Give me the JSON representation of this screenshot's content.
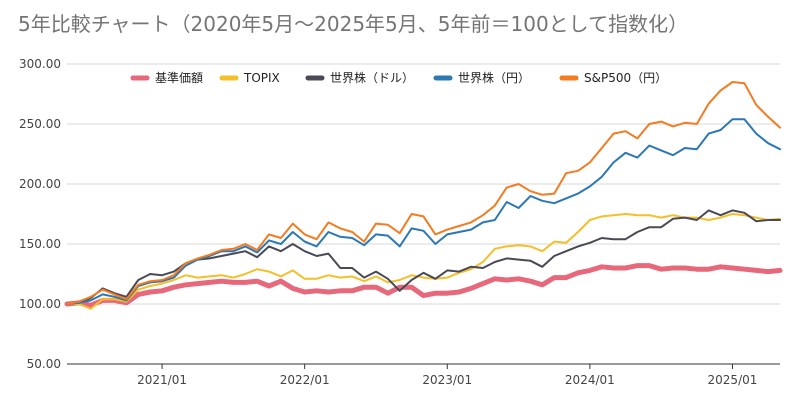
{
  "chart_data": {
    "type": "line",
    "title": "5年比較チャート（2020年5月〜2025年5月、5年前＝100として指数化）",
    "xlabel": "",
    "ylabel": "",
    "ylim": [
      50,
      300
    ],
    "y_ticks": [
      "50.00",
      "100.00",
      "150.00",
      "200.00",
      "250.00",
      "300.00"
    ],
    "x_ticks": [
      "2021/01",
      "2022/01",
      "2023/01",
      "2024/01",
      "2025/01"
    ],
    "x_start": "2020/05",
    "x_end": "2025/05",
    "grid": true,
    "legend_position": "top",
    "x": [
      "2020/05",
      "2020/06",
      "2020/07",
      "2020/08",
      "2020/09",
      "2020/10",
      "2020/11",
      "2020/12",
      "2021/01",
      "2021/02",
      "2021/03",
      "2021/04",
      "2021/05",
      "2021/06",
      "2021/07",
      "2021/08",
      "2021/09",
      "2021/10",
      "2021/11",
      "2021/12",
      "2022/01",
      "2022/02",
      "2022/03",
      "2022/04",
      "2022/05",
      "2022/06",
      "2022/07",
      "2022/08",
      "2022/09",
      "2022/10",
      "2022/11",
      "2022/12",
      "2023/01",
      "2023/02",
      "2023/03",
      "2023/04",
      "2023/05",
      "2023/06",
      "2023/07",
      "2023/08",
      "2023/09",
      "2023/10",
      "2023/11",
      "2023/12",
      "2024/01",
      "2024/02",
      "2024/03",
      "2024/04",
      "2024/05",
      "2024/06",
      "2024/07",
      "2024/08",
      "2024/09",
      "2024/10",
      "2024/11",
      "2024/12",
      "2025/01",
      "2025/02",
      "2025/03",
      "2025/04",
      "2025/05"
    ],
    "series": [
      {
        "name": "基準価額",
        "color": "#e8687b",
        "width": 5,
        "values": [
          100,
          101,
          99,
          103,
          103,
          101,
          108,
          110,
          111,
          114,
          116,
          117,
          118,
          119,
          118,
          118,
          119,
          115,
          119,
          113,
          110,
          111,
          110,
          111,
          111,
          114,
          114,
          109,
          114,
          114,
          107,
          109,
          109,
          110,
          113,
          117,
          121,
          120,
          121,
          119,
          116,
          122,
          122,
          126,
          128,
          131,
          130,
          130,
          132,
          132,
          129,
          130,
          130,
          129,
          129,
          131,
          130,
          129,
          128,
          127,
          128
        ]
      },
      {
        "name": "TOPIX",
        "color": "#f4c029",
        "width": 2,
        "values": [
          100,
          100,
          96,
          104,
          104,
          102,
          112,
          115,
          117,
          120,
          124,
          122,
          123,
          124,
          122,
          125,
          129,
          127,
          123,
          128,
          121,
          121,
          124,
          122,
          123,
          119,
          123,
          118,
          120,
          124,
          122,
          121,
          122,
          126,
          129,
          135,
          146,
          148,
          149,
          148,
          144,
          152,
          151,
          160,
          170,
          173,
          174,
          175,
          174,
          174,
          172,
          174,
          172,
          172,
          170,
          172,
          175,
          174,
          172,
          170,
          171
        ]
      },
      {
        "name": "世界株（ドル）",
        "color": "#4a4a56",
        "width": 2,
        "values": [
          100,
          101,
          105,
          113,
          109,
          106,
          120,
          125,
          124,
          127,
          134,
          137,
          138,
          140,
          142,
          144,
          139,
          148,
          144,
          150,
          144,
          140,
          142,
          130,
          130,
          122,
          127,
          121,
          111,
          120,
          126,
          121,
          128,
          127,
          131,
          130,
          135,
          138,
          137,
          136,
          131,
          140,
          144,
          148,
          151,
          155,
          154,
          154,
          160,
          164,
          164,
          171,
          172,
          170,
          178,
          174,
          178,
          176,
          169,
          170,
          170
        ]
      },
      {
        "name": "世界株（円）",
        "color": "#2b78b5",
        "width": 2,
        "values": [
          100,
          101,
          103,
          108,
          106,
          103,
          115,
          118,
          119,
          122,
          132,
          137,
          140,
          144,
          144,
          148,
          143,
          153,
          150,
          160,
          152,
          148,
          160,
          156,
          155,
          149,
          158,
          157,
          148,
          163,
          161,
          150,
          158,
          160,
          162,
          168,
          170,
          185,
          180,
          190,
          186,
          184,
          188,
          192,
          198,
          206,
          218,
          226,
          222,
          232,
          228,
          224,
          230,
          229,
          242,
          245,
          254,
          254,
          242,
          234,
          229
        ]
      },
      {
        "name": "S&P500（円）",
        "color": "#f47b20",
        "width": 2,
        "values": [
          100,
          102,
          106,
          112,
          108,
          104,
          116,
          119,
          120,
          124,
          134,
          138,
          141,
          145,
          146,
          150,
          145,
          158,
          155,
          167,
          158,
          154,
          168,
          163,
          160,
          152,
          167,
          166,
          159,
          175,
          173,
          158,
          162,
          165,
          168,
          174,
          182,
          197,
          200,
          194,
          191,
          192,
          209,
          211,
          218,
          230,
          242,
          244,
          238,
          250,
          252,
          248,
          251,
          250,
          267,
          278,
          285,
          284,
          266,
          256,
          247
        ]
      }
    ]
  }
}
